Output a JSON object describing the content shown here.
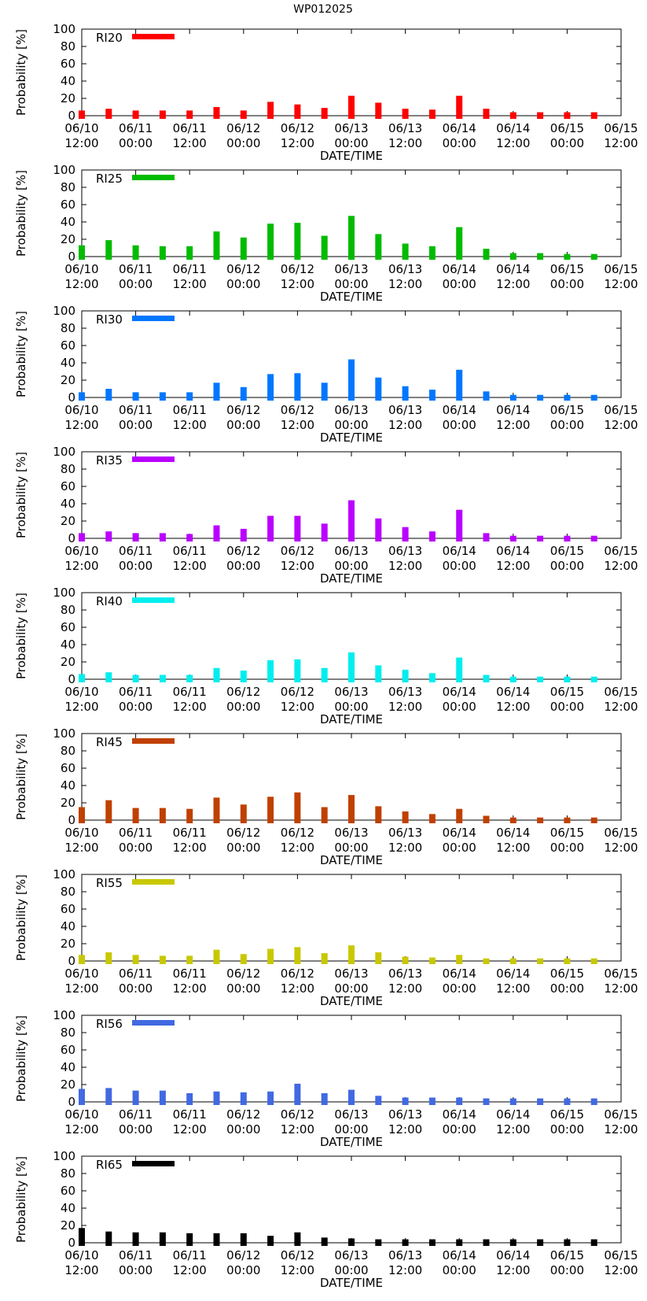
{
  "page_title": "WP012025",
  "chart_data": {
    "type": "bar",
    "title": "WP012025",
    "xlabel": "DATE/TIME",
    "ylabel": "Probability [%]",
    "ylim": [
      0,
      100
    ],
    "yticks": [
      "0",
      "20",
      "40",
      "60",
      "80",
      "100"
    ],
    "xtick_labels": [
      [
        "06/10",
        "12:00"
      ],
      [
        "06/11",
        "00:00"
      ],
      [
        "06/11",
        "12:00"
      ],
      [
        "06/12",
        "00:00"
      ],
      [
        "06/12",
        "12:00"
      ],
      [
        "06/13",
        "00:00"
      ],
      [
        "06/13",
        "12:00"
      ],
      [
        "06/14",
        "00:00"
      ],
      [
        "06/14",
        "12:00"
      ],
      [
        "06/15",
        "00:00"
      ],
      [
        "06/15",
        "12:00"
      ]
    ],
    "categories": [
      "06/10 12:00",
      "06/10 18:00",
      "06/11 00:00",
      "06/11 06:00",
      "06/11 12:00",
      "06/11 18:00",
      "06/12 00:00",
      "06/12 06:00",
      "06/12 12:00",
      "06/12 18:00",
      "06/13 00:00",
      "06/13 06:00",
      "06/13 12:00",
      "06/13 18:00",
      "06/14 00:00",
      "06/14 06:00",
      "06/14 12:00",
      "06/14 18:00",
      "06/15 00:00",
      "06/15 06:00"
    ],
    "grid": false,
    "legend_position": "top-left",
    "series": [
      {
        "name": "RI20",
        "color": "#ff0000",
        "values": [
          6,
          8,
          6,
          6,
          6,
          10,
          6,
          16,
          13,
          9,
          23,
          15,
          8,
          7,
          23,
          8,
          4,
          4,
          4,
          4
        ]
      },
      {
        "name": "RI25",
        "color": "#00bb00",
        "values": [
          13,
          19,
          13,
          12,
          12,
          29,
          22,
          38,
          39,
          24,
          47,
          26,
          15,
          12,
          34,
          9,
          4,
          4,
          3,
          3
        ]
      },
      {
        "name": "RI30",
        "color": "#0077ff",
        "values": [
          6,
          10,
          6,
          6,
          6,
          17,
          12,
          27,
          28,
          17,
          44,
          23,
          13,
          9,
          32,
          7,
          3,
          3,
          3,
          3
        ]
      },
      {
        "name": "RI35",
        "color": "#bb00ff",
        "values": [
          6,
          8,
          6,
          6,
          5,
          15,
          11,
          26,
          26,
          17,
          44,
          23,
          13,
          8,
          33,
          6,
          3,
          3,
          3,
          3
        ]
      },
      {
        "name": "RI40",
        "color": "#00eeee",
        "values": [
          6,
          8,
          5,
          5,
          5,
          13,
          10,
          22,
          23,
          13,
          31,
          16,
          11,
          7,
          25,
          5,
          3,
          3,
          3,
          3
        ]
      },
      {
        "name": "RI45",
        "color": "#c04000",
        "values": [
          15,
          23,
          14,
          14,
          13,
          26,
          18,
          27,
          32,
          15,
          29,
          16,
          10,
          7,
          13,
          5,
          3,
          3,
          3,
          3
        ]
      },
      {
        "name": "RI55",
        "color": "#c8c800",
        "values": [
          7,
          10,
          7,
          6,
          6,
          13,
          8,
          14,
          16,
          9,
          18,
          10,
          5,
          4,
          7,
          3,
          3,
          3,
          3,
          3
        ]
      },
      {
        "name": "RI56",
        "color": "#4169e1",
        "values": [
          15,
          16,
          13,
          13,
          10,
          12,
          11,
          12,
          21,
          10,
          14,
          7,
          5,
          5,
          5,
          4,
          4,
          4,
          4,
          4
        ]
      },
      {
        "name": "RI65",
        "color": "#000000",
        "values": [
          17,
          13,
          12,
          12,
          11,
          11,
          11,
          8,
          12,
          6,
          5,
          4,
          4,
          4,
          4,
          4,
          4,
          4,
          4,
          4
        ]
      }
    ]
  }
}
